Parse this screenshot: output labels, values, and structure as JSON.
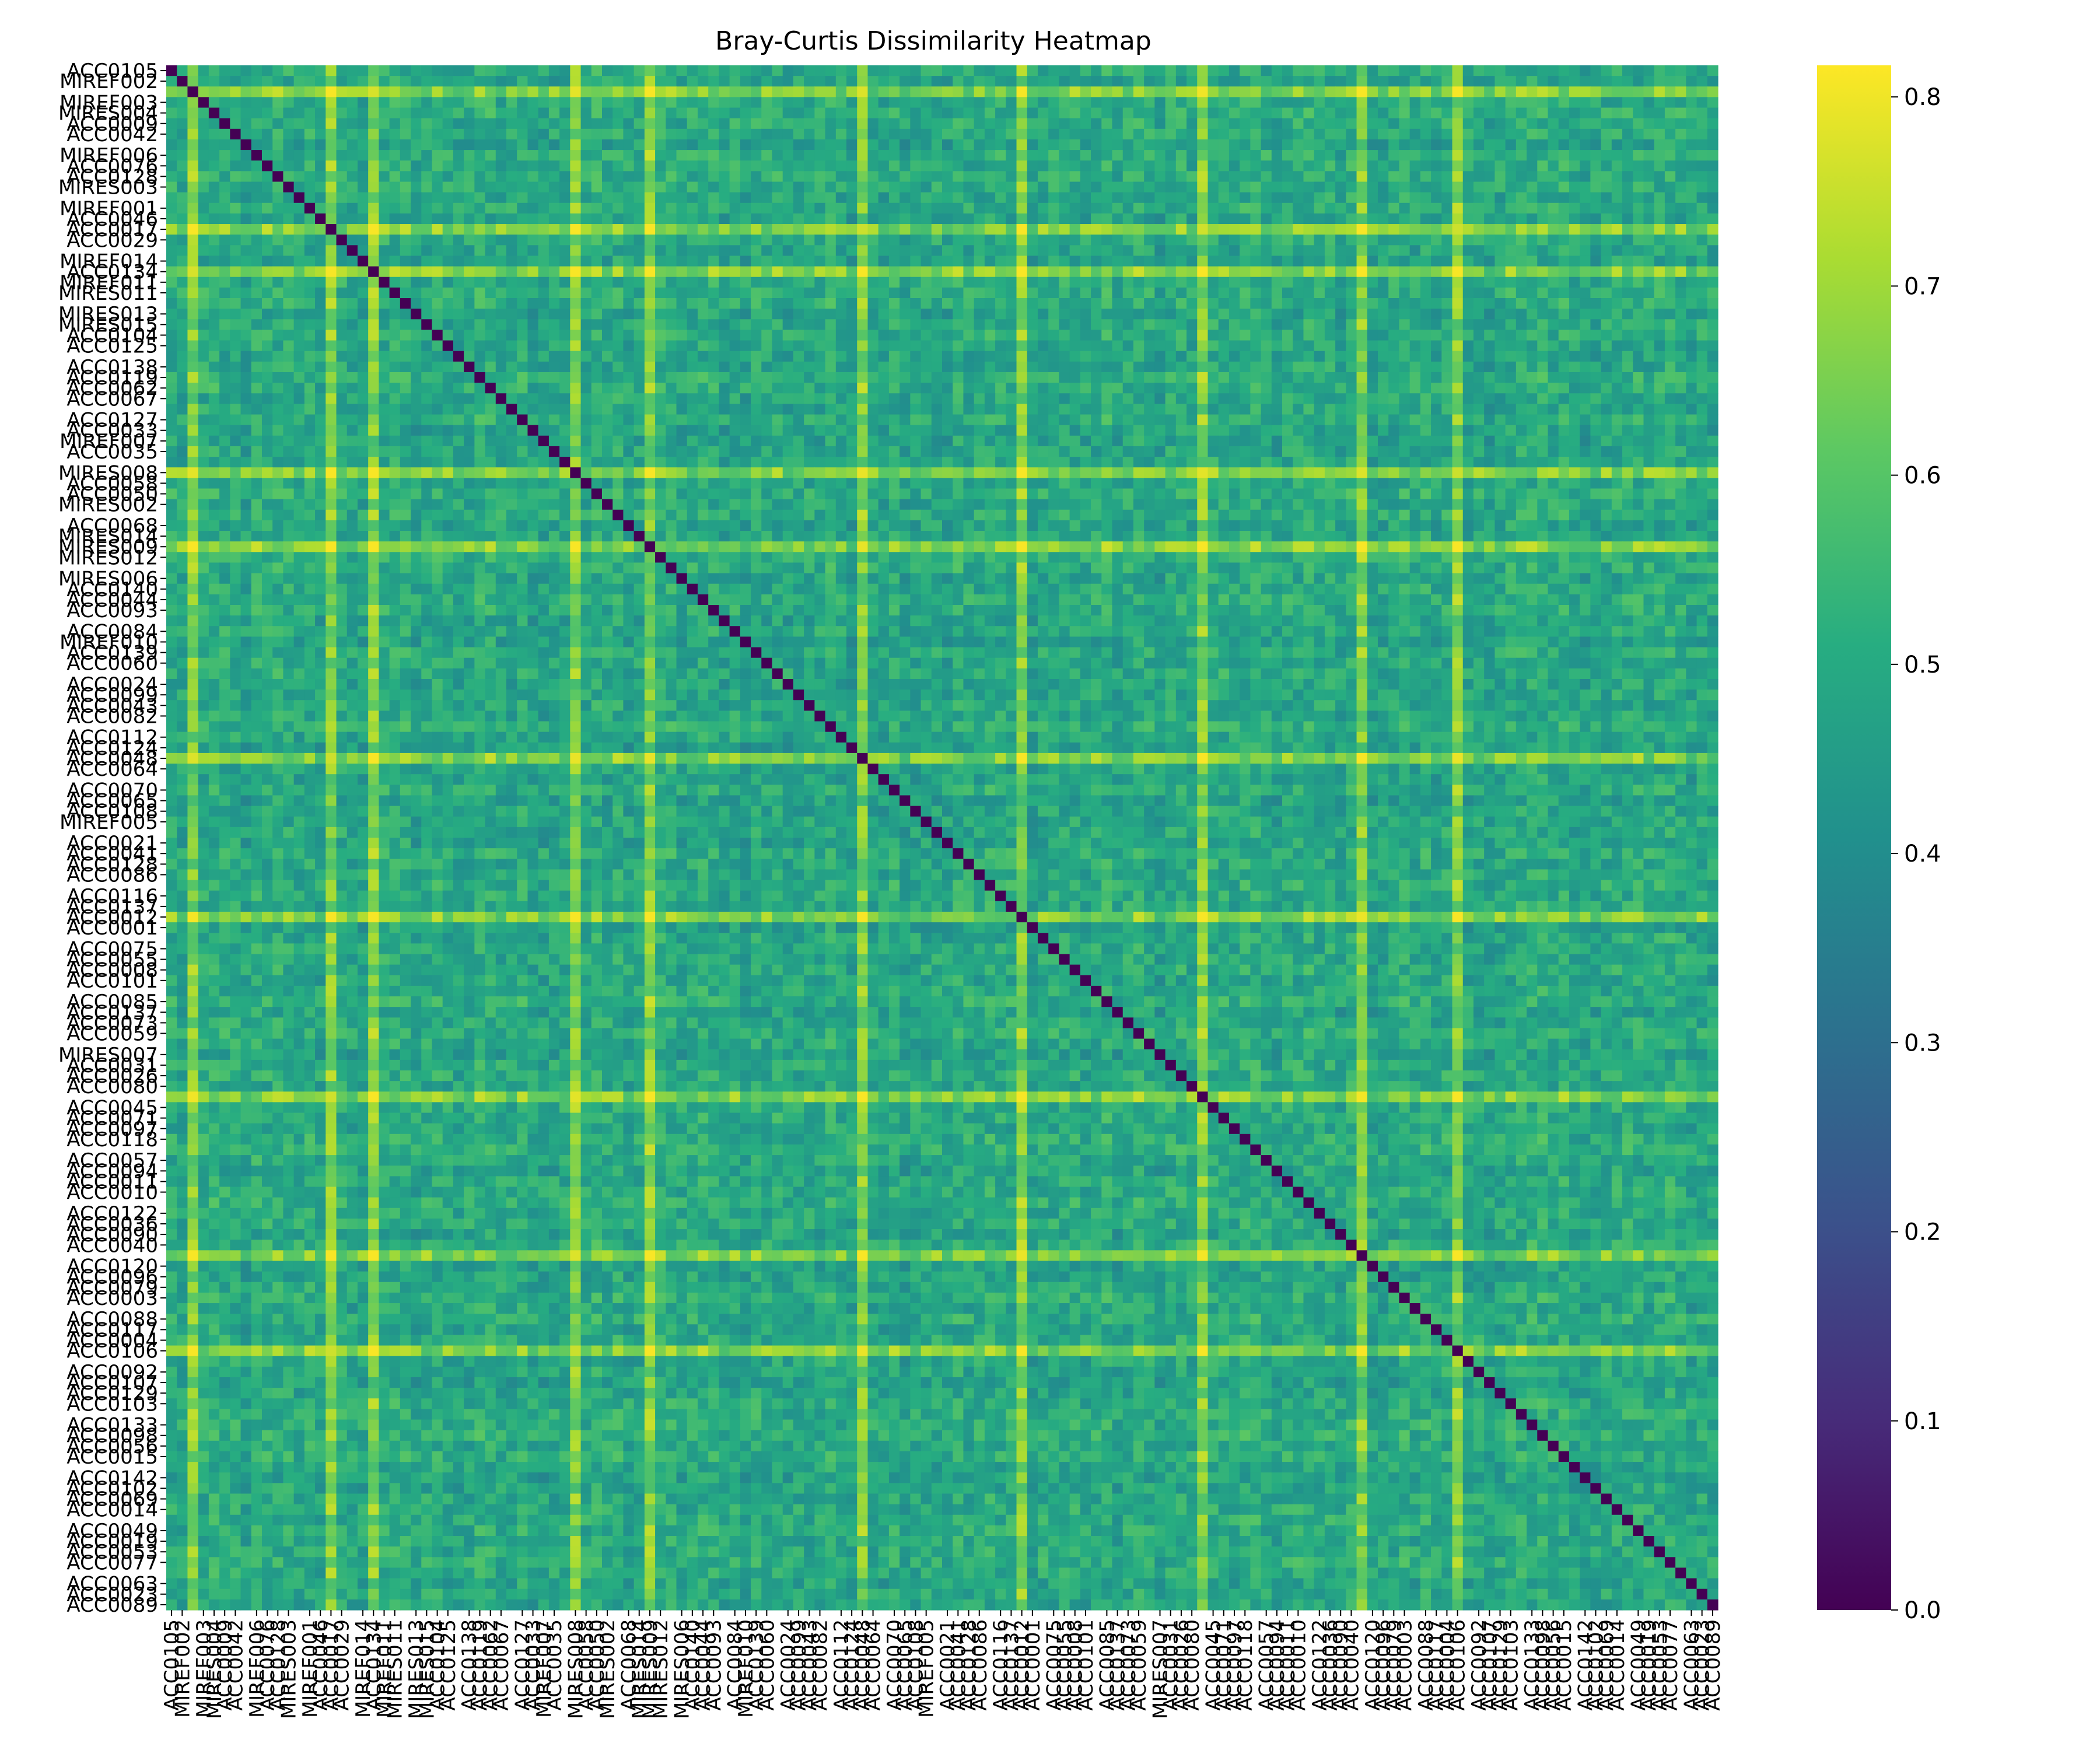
{
  "chart_data": {
    "type": "heatmap",
    "title": "Bray-Curtis Dissimilarity Heatmap",
    "xlabel": "",
    "ylabel": "",
    "colormap": "viridis",
    "colorbar": {
      "vmin": 0.0,
      "vmax": 0.8167,
      "ticks": [
        "0.0",
        "0.1",
        "0.2",
        "0.3",
        "0.4",
        "0.5",
        "0.6",
        "0.7",
        "0.8"
      ]
    },
    "labels_note": "Row/column sample labels are densely overlapped in the original; the legible ones are listed (same order on both axes).",
    "labels": [
      "ACC0105",
      "MIREF002",
      "MIREF003",
      "MIRES004",
      "ACC0009",
      "ACC0042",
      "MIREF006",
      "ACC0076",
      "ACC0128",
      "MIRES003",
      "MIREF001",
      "ACC0046",
      "ACC0017",
      "ACC0029",
      "MIREF014",
      "ACC0134",
      "MIREF011",
      "MIRES011",
      "MIRES013",
      "MIRES015",
      "ACC0104",
      "ACC0125",
      "ACC0138",
      "ACC0119",
      "ACC0062",
      "ACC0067",
      "ACC0127",
      "ACC0033",
      "MIREF007",
      "ACC0035",
      "MIRES008",
      "ACC0058",
      "ACC0050",
      "MIRES002",
      "ACC0068",
      "MIRES014",
      "MIRES009",
      "MIRES012",
      "MIRES006",
      "ACC0140",
      "ACC0044",
      "ACC0093",
      "ACC0084",
      "MIREF010",
      "ACC0139",
      "ACC0060",
      "ACC0024",
      "ACC0099",
      "ACC0043",
      "ACC0082",
      "ACC0112",
      "ACC0124",
      "ACC0048",
      "ACC0064",
      "ACC0070",
      "ACC0065",
      "ACC0108",
      "MIREF005",
      "ACC0021",
      "ACC0041",
      "ACC0128",
      "ACC0086",
      "ACC0116",
      "ACC0137",
      "ACC0012",
      "ACC0001",
      "ACC0075",
      "ACC0055",
      "ACC0008",
      "ACC0101",
      "ACC0085",
      "ACC0137",
      "ACC0073",
      "ACC0059",
      "MIRES007",
      "ACC0031",
      "ACC0026",
      "ACC0080",
      "ACC0045",
      "ACC0071",
      "ACC0097",
      "ACC0118",
      "ACC0057",
      "ACC0094",
      "ACC0011",
      "ACC0010",
      "ACC0122",
      "ACC0036",
      "ACC0090",
      "ACC0040",
      "ACC0120",
      "ACC0096",
      "ACC0079",
      "ACC0003",
      "ACC0088",
      "ACC0117",
      "ACC0004",
      "ACC0106",
      "ACC0092",
      "ACC0107",
      "ACC0129",
      "ACC0103",
      "ACC0133",
      "ACC0098",
      "ACC0056",
      "ACC0015",
      "ACC0142",
      "ACC0102",
      "ACC0069",
      "ACC0014",
      "ACC0049",
      "ACC0019",
      "ACC0053",
      "ACC0077",
      "ACC0063",
      "ACC0023",
      "ACC0089"
    ],
    "n": 146,
    "highlight_rows": [
      2,
      15,
      19,
      38,
      45,
      65,
      80,
      97,
      112,
      121
    ],
    "value_levels": {
      "diagonal": 0.0,
      "typical_min": 0.36,
      "typical_max": 0.62,
      "highlight_min": 0.62,
      "highlight_max": 0.81
    }
  }
}
